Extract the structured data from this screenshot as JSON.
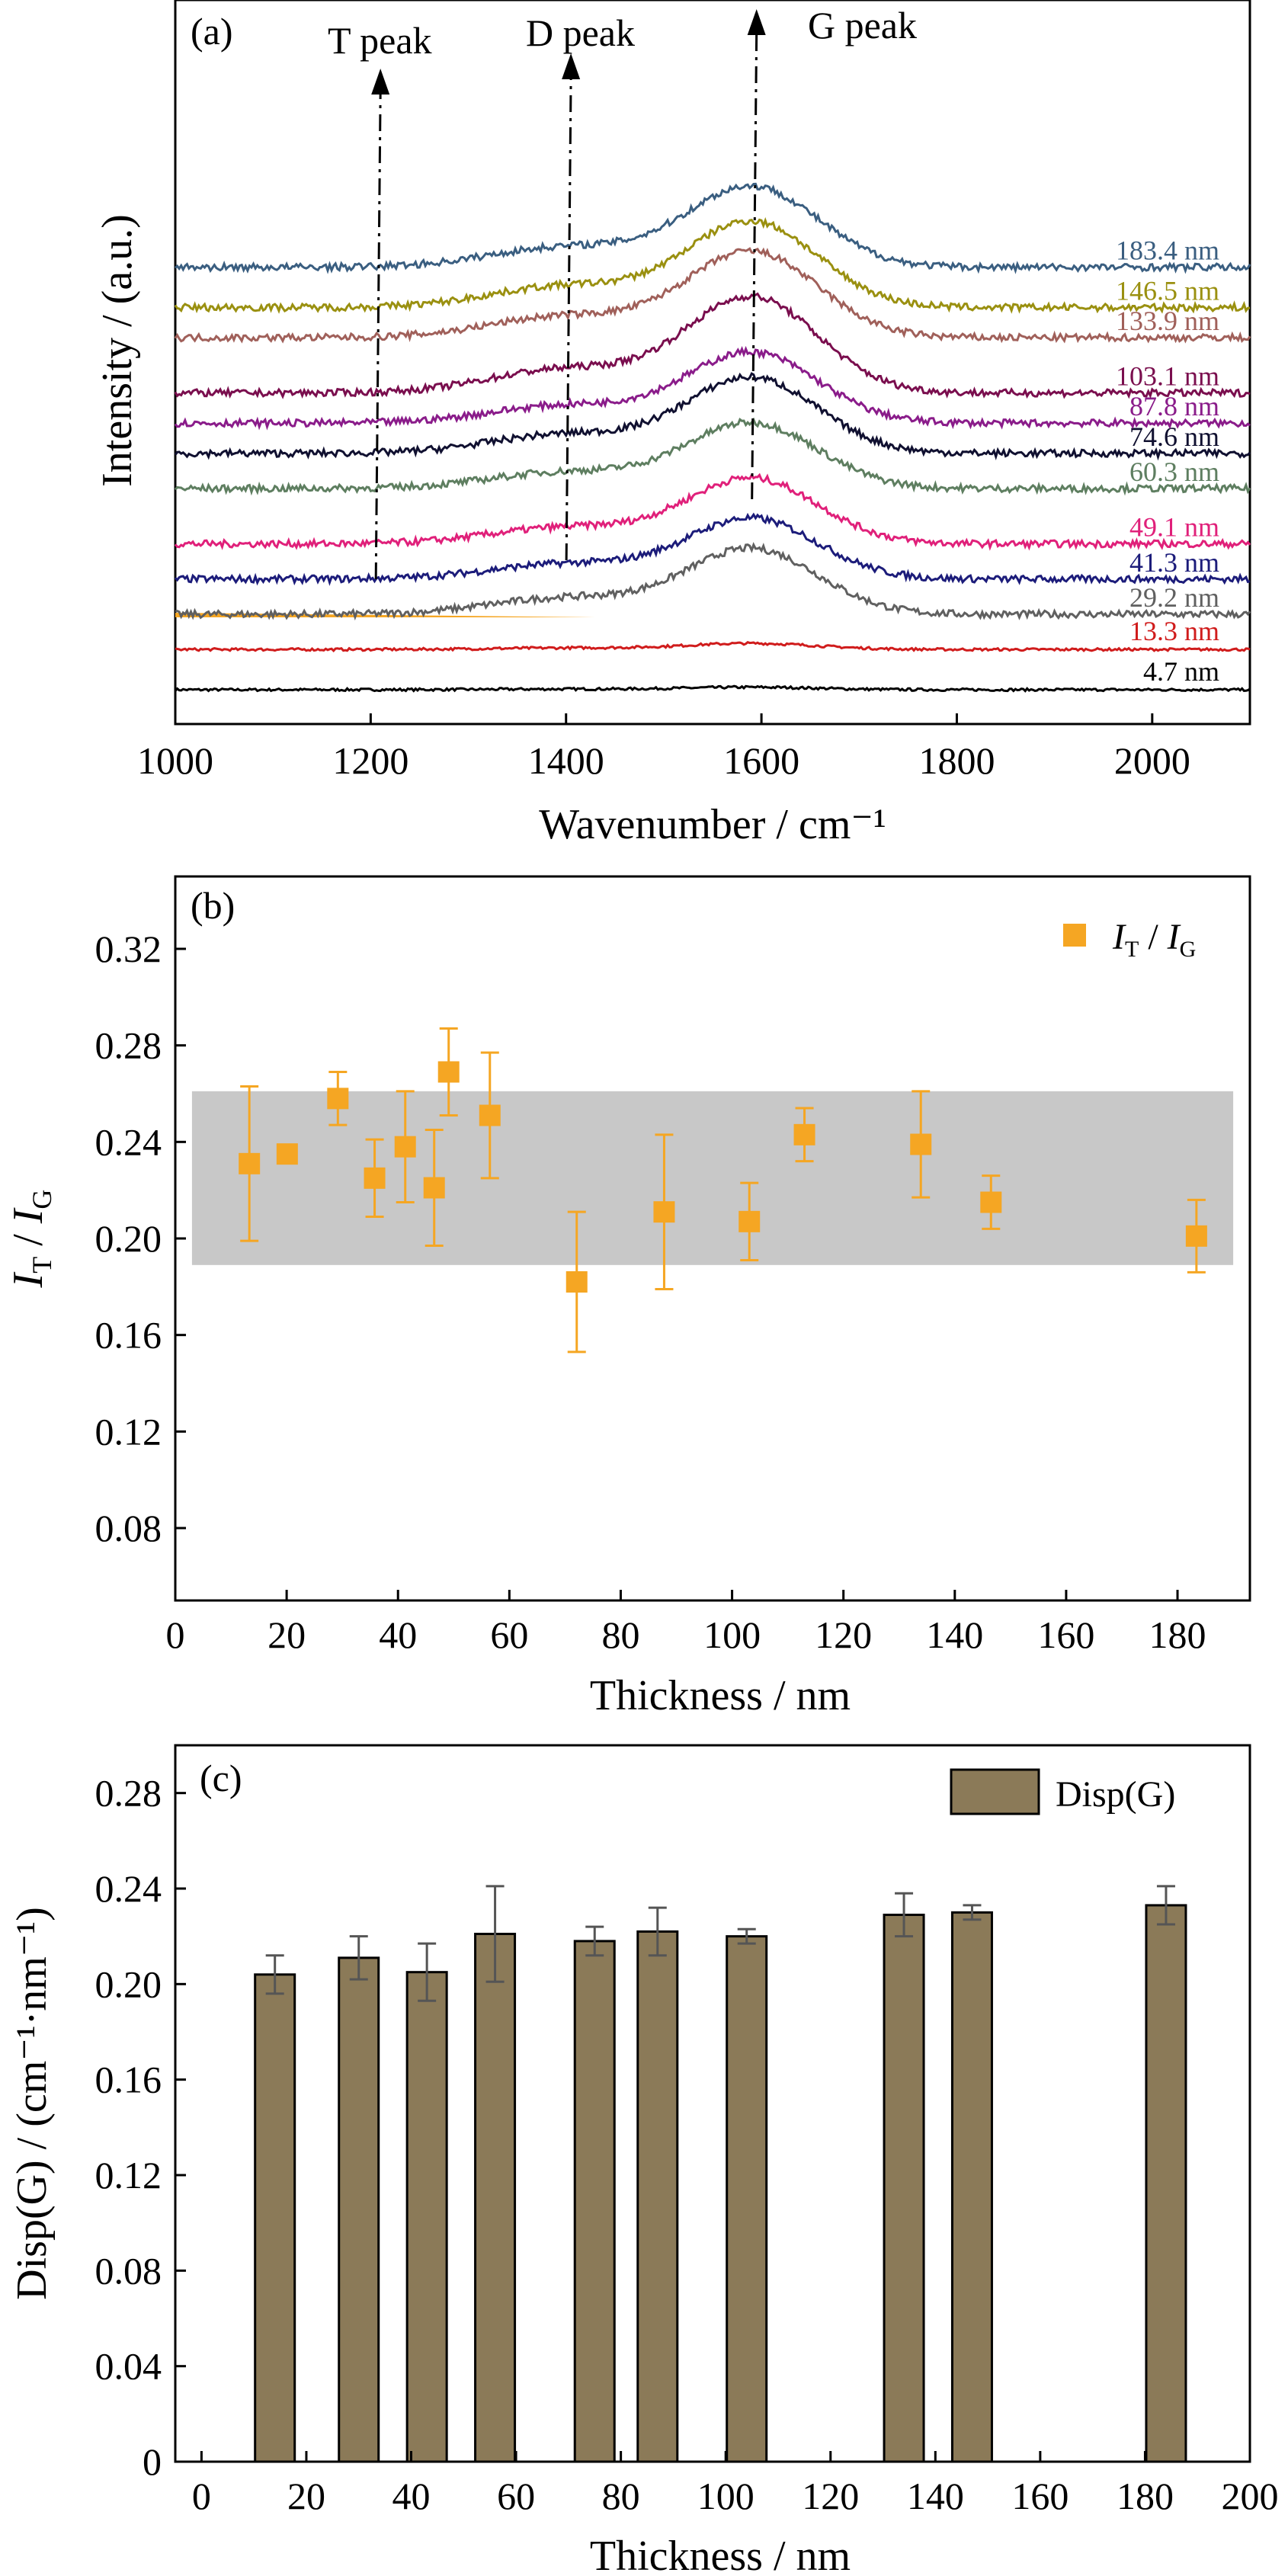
{
  "colors": {
    "accent_orange": "#F5A623",
    "bar_fill": "#8B7A58",
    "band_gray": "#C8C8C8",
    "errbar_gray": "#555555"
  },
  "panels": [
    {
      "label": "(a)"
    },
    {
      "label": "(b)"
    },
    {
      "label": "(c)"
    }
  ],
  "annotations": {
    "t_peak": "T peak",
    "d_peak": "D peak",
    "g_peak": "G peak"
  },
  "chart_data": [
    {
      "type": "line",
      "panel": "(a)",
      "xlabel": "Wavenumber / cm⁻¹",
      "ylabel": "Intensity / (a.u.)",
      "xlim": [
        1000,
        2100
      ],
      "x_ticks": [
        1000,
        1200,
        1400,
        1600,
        1800,
        2000
      ],
      "peak_positions": {
        "T peak": 1210,
        "D peak": 1405,
        "G peak": 1595
      },
      "series": [
        {
          "name": "4.7 nm",
          "color": "#000000",
          "offset": 0,
          "peak_height": 0.05
        },
        {
          "name": "13.3 nm",
          "color": "#D01C1C",
          "offset": 0.8,
          "peak_height": 0.12
        },
        {
          "name": "29.2 nm",
          "color": "#606060",
          "offset": 1.5,
          "peak_height": 1.3
        },
        {
          "name": "41.3 nm",
          "color": "#1C1C7A",
          "offset": 2.2,
          "peak_height": 1.2
        },
        {
          "name": "49.1 nm",
          "color": "#E0207A",
          "offset": 2.9,
          "peak_height": 1.3
        },
        {
          "name": "60.3 nm",
          "color": "#5E7E60",
          "offset": 4.0,
          "peak_height": 1.3
        },
        {
          "name": "74.6 nm",
          "color": "#101030",
          "offset": 4.7,
          "peak_height": 1.5
        },
        {
          "name": "87.8 nm",
          "color": "#8A1C8A",
          "offset": 5.3,
          "peak_height": 1.4
        },
        {
          "name": "103.1 nm",
          "color": "#7A0E4E",
          "offset": 5.9,
          "peak_height": 1.9
        },
        {
          "name": "133.9 nm",
          "color": "#A0605A",
          "offset": 7.0,
          "peak_height": 1.7
        },
        {
          "name": "146.5 nm",
          "color": "#9A9010",
          "offset": 7.6,
          "peak_height": 1.7
        },
        {
          "name": "183.4 nm",
          "color": "#3A5E80",
          "offset": 8.4,
          "peak_height": 1.6
        }
      ]
    },
    {
      "type": "scatter",
      "panel": "(b)",
      "xlabel": "Thickness / nm",
      "ylabel_main": "I",
      "ylabel_sub1": "T",
      "ylabel_sep": " / ",
      "ylabel_sub2": "G",
      "legend_main": "I",
      "legend_sub1": "T",
      "legend_sep": " / ",
      "legend_sub2": "G",
      "legend_position": "top-right",
      "xlim": [
        0,
        193
      ],
      "ylim": [
        0.05,
        0.35
      ],
      "x_ticks": [
        0,
        20,
        40,
        60,
        80,
        100,
        120,
        140,
        160,
        180
      ],
      "y_ticks": [
        0.08,
        0.12,
        0.16,
        0.2,
        0.24,
        0.28,
        0.32
      ],
      "band": [
        0.189,
        0.261
      ],
      "x": [
        13.3,
        20.1,
        29.2,
        35.8,
        41.3,
        46.5,
        49.1,
        56.5,
        72.1,
        87.8,
        103.1,
        113.0,
        133.9,
        146.5,
        183.4
      ],
      "y": [
        0.231,
        0.235,
        0.258,
        0.225,
        0.238,
        0.221,
        0.269,
        0.251,
        0.182,
        0.211,
        0.207,
        0.243,
        0.239,
        0.215,
        0.201
      ],
      "err": [
        0.032,
        0.002,
        0.011,
        0.016,
        0.023,
        0.024,
        0.018,
        0.026,
        0.029,
        0.032,
        0.016,
        0.011,
        0.022,
        0.011,
        0.015
      ]
    },
    {
      "type": "bar",
      "panel": "(c)",
      "xlabel": "Thickness / nm",
      "ylabel": "Disp(G) / (cm⁻¹·nm⁻¹)",
      "legend": "Disp(G)",
      "legend_position": "top-right",
      "xlim": [
        -5,
        200
      ],
      "ylim": [
        0,
        0.3
      ],
      "x_ticks": [
        0,
        20,
        40,
        60,
        80,
        100,
        120,
        140,
        160,
        180,
        200
      ],
      "y_ticks": [
        0,
        0.04,
        0.08,
        0.12,
        0.16,
        0.2,
        0.24,
        0.28
      ],
      "x": [
        14,
        30,
        43,
        56,
        75,
        87,
        104,
        134,
        147,
        184
      ],
      "values": [
        0.204,
        0.211,
        0.205,
        0.221,
        0.218,
        0.222,
        0.22,
        0.229,
        0.23,
        0.233
      ],
      "err": [
        0.008,
        0.009,
        0.012,
        0.02,
        0.006,
        0.01,
        0.003,
        0.009,
        0.003,
        0.008
      ]
    }
  ]
}
